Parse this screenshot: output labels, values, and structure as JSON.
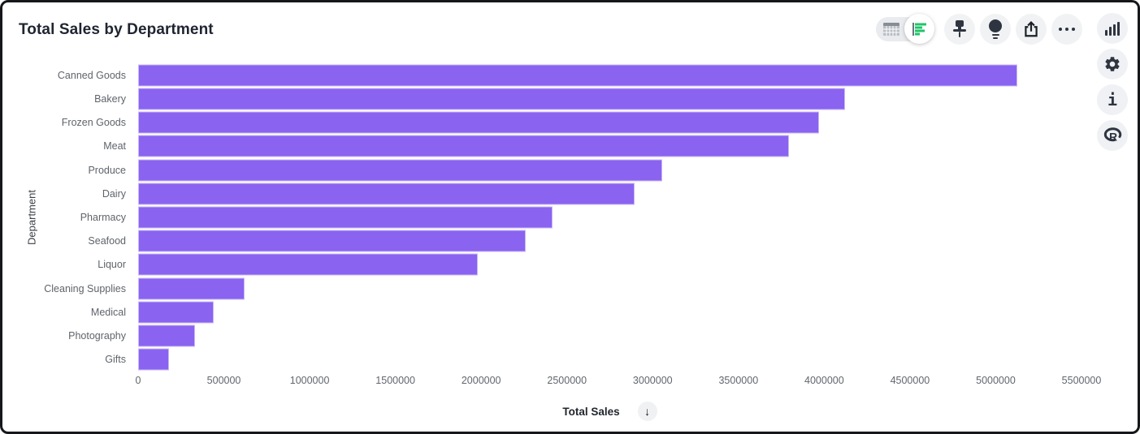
{
  "window": {
    "title": "Total Sales by Department"
  },
  "toolbar": {
    "view_toggle": {
      "options": [
        {
          "name": "table-view",
          "icon": "table-grid-icon",
          "selected": false
        },
        {
          "name": "chart-view",
          "icon": "horizontal-bar-chart-icon",
          "selected": true
        }
      ]
    },
    "buttons": [
      {
        "name": "pin",
        "icon": "pushpin-icon"
      },
      {
        "name": "insights",
        "icon": "lightbulb-icon"
      },
      {
        "name": "share",
        "icon": "share-up-arrow-icon"
      },
      {
        "name": "more",
        "icon": "ellipsis-icon"
      }
    ]
  },
  "right_rail": {
    "buttons": [
      {
        "name": "chart-type",
        "icon": "column-chart-icon"
      },
      {
        "name": "settings",
        "icon": "gear-icon"
      },
      {
        "name": "info",
        "icon": "i-glyph-icon",
        "glyph": "i"
      },
      {
        "name": "r-language",
        "icon": "r-logo-icon",
        "glyph": "R"
      }
    ]
  },
  "sort_control": {
    "icon": "arrow-down-icon",
    "glyph": "↓",
    "direction": "descending"
  },
  "colors": {
    "bar": "#8a63f0",
    "toggle_green": "#1ec567",
    "icon_dark": "#2e3440",
    "title_text": "#1f2530",
    "axis_text": "#5f646a",
    "button_bg": "#f1f2f4"
  },
  "chart_data": {
    "type": "bar",
    "orientation": "horizontal",
    "title": "Total Sales by Department",
    "xlabel": "Total Sales",
    "ylabel": "Department",
    "categories": [
      "Canned Goods",
      "Bakery",
      "Frozen Goods",
      "Meat",
      "Produce",
      "Dairy",
      "Pharmacy",
      "Seafood",
      "Liquor",
      "Cleaning Supplies",
      "Medical",
      "Photography",
      "Gifts"
    ],
    "values": [
      5125000,
      4120000,
      3970000,
      3795000,
      3055000,
      2895000,
      2415000,
      2260000,
      1980000,
      620000,
      440000,
      330000,
      180000
    ],
    "xlim": [
      0,
      5500000
    ],
    "x_ticks": [
      "0",
      "500000",
      "1000000",
      "1500000",
      "2000000",
      "2500000",
      "3000000",
      "3500000",
      "4000000",
      "4500000",
      "5000000",
      "5500000"
    ],
    "grid": false,
    "legend": "none",
    "sort": "descending"
  }
}
